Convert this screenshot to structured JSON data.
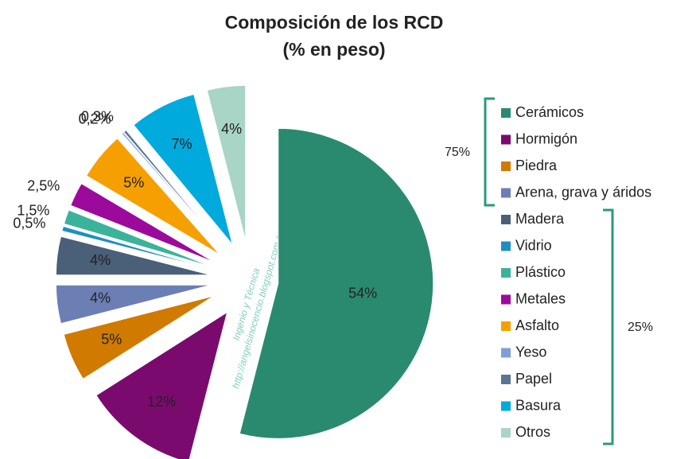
{
  "chart_data": {
    "type": "pie",
    "title": "Composición de los RCD",
    "subtitle": "(% en peso)",
    "categories": [
      "Cerámicos",
      "Hormigón",
      "Piedra",
      "Arena, grava y áridos",
      "Madera",
      "Vidrio",
      "Plástico",
      "Metales",
      "Asfalto",
      "Yeso",
      "Papel",
      "Basura",
      "Otros"
    ],
    "values": [
      54,
      12,
      5,
      4,
      4,
      0.5,
      1.5,
      2.5,
      5,
      0.2,
      0.3,
      7,
      4
    ],
    "value_labels": [
      "54%",
      "12%",
      "5%",
      "4%",
      "4%",
      "0,5%",
      "1,5%",
      "2,5%",
      "5%",
      "0,2%",
      "0,3%",
      "7%",
      "4%"
    ],
    "colors": [
      "#2a8a70",
      "#7b0a6e",
      "#d07a00",
      "#6b7fb5",
      "#4a5f78",
      "#1e8fc0",
      "#3bb39a",
      "#9b0a9b",
      "#f5a000",
      "#7f9fd8",
      "#5a7593",
      "#00aadd",
      "#a8d5c5"
    ],
    "legend": "right",
    "annotations": [
      "75%",
      "25%"
    ],
    "watermark": [
      "Ingenio y Técnica",
      "http://angelsinocencio.blogspot.com.es/"
    ]
  }
}
